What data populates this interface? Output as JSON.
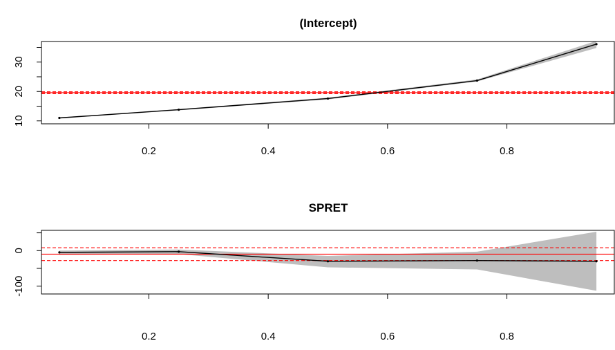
{
  "chart_data": [
    {
      "type": "line",
      "title": "(Intercept)",
      "xlabel": "",
      "ylabel": "",
      "xlim": [
        0.02,
        0.98
      ],
      "ylim": [
        9,
        37
      ],
      "x_ticks": [
        "0.2",
        "0.4",
        "0.6",
        "0.8"
      ],
      "y_ticks": [
        "10",
        "20",
        "30"
      ],
      "x": [
        0.05,
        0.25,
        0.5,
        0.75,
        0.95
      ],
      "y": [
        11.0,
        13.8,
        17.6,
        23.7,
        36.1
      ],
      "band_lower": [
        10.8,
        13.6,
        17.3,
        23.4,
        34.8
      ],
      "band_upper": [
        11.2,
        14.0,
        17.9,
        24.1,
        37.2
      ],
      "hlines": [
        {
          "y": 19.6,
          "style": "solid"
        },
        {
          "y": 19.3,
          "style": "dashed"
        },
        {
          "y": 19.9,
          "style": "dashed"
        }
      ],
      "colors": {
        "line": "#000000",
        "band": "#bebebe",
        "ref": "#ff0000"
      }
    },
    {
      "type": "line",
      "title": "SPRET",
      "xlabel": "",
      "ylabel": "",
      "xlim": [
        0.02,
        0.98
      ],
      "ylim": [
        -122,
        57
      ],
      "x_ticks": [
        "0.2",
        "0.4",
        "0.6",
        "0.8"
      ],
      "y_ticks": [
        "-100",
        "0"
      ],
      "x": [
        0.05,
        0.25,
        0.5,
        0.75,
        0.95
      ],
      "y": [
        -5,
        -3,
        -30,
        -28,
        -30
      ],
      "band_lower": [
        -12,
        -10,
        -47,
        -53,
        -113
      ],
      "band_upper": [
        0,
        3,
        -15,
        -3,
        53
      ],
      "hlines": [
        {
          "y": -10,
          "style": "solid"
        },
        {
          "y": 8,
          "style": "dashed"
        },
        {
          "y": -28,
          "style": "dashed"
        }
      ],
      "colors": {
        "line": "#000000",
        "band": "#bebebe",
        "ref": "#ff0000"
      }
    }
  ]
}
